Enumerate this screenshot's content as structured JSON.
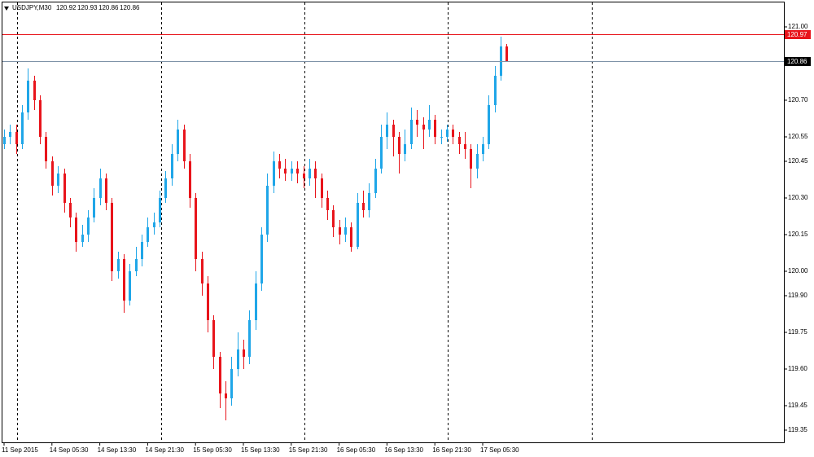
{
  "chart_data": {
    "type": "candlestick",
    "symbol": "USDJPY,M30",
    "categories": [
      "11 Sep 2015",
      null,
      null,
      null,
      null,
      null,
      null,
      null,
      "14 Sep 05:30",
      null,
      null,
      null,
      null,
      null,
      null,
      null,
      "14 Sep 13:30",
      null,
      null,
      null,
      null,
      null,
      null,
      null,
      "14 Sep 21:30",
      null,
      null,
      null,
      null,
      null,
      null,
      null,
      "15 Sep 05:30",
      null,
      null,
      null,
      null,
      null,
      null,
      null,
      "15 Sep 13:30",
      null,
      null,
      null,
      null,
      null,
      null,
      null,
      "15 Sep 21:30",
      null,
      null,
      null,
      null,
      null,
      null,
      null,
      "16 Sep 05:30",
      null,
      null,
      null,
      null,
      null,
      null,
      null,
      "16 Sep 13:30",
      null,
      null,
      null,
      null,
      null,
      null,
      null,
      "16 Sep 21:30",
      null,
      null,
      null,
      null,
      null,
      null,
      null,
      "17 Sep 05:30",
      null,
      null,
      null,
      null
    ],
    "open": [
      120.52,
      120.55,
      120.57,
      120.52,
      120.65,
      120.78,
      120.7,
      120.55,
      120.45,
      120.35,
      120.4,
      120.28,
      120.22,
      120.12,
      120.15,
      120.22,
      120.3,
      120.38,
      120.28,
      120.0,
      120.05,
      119.88,
      120.0,
      120.05,
      120.12,
      120.18,
      120.2,
      120.3,
      120.38,
      120.48,
      120.58,
      120.45,
      120.3,
      120.05,
      119.95,
      119.8,
      119.65,
      119.5,
      119.48,
      119.6,
      119.68,
      119.65,
      119.8,
      119.95,
      120.15,
      120.35,
      120.45,
      120.42,
      120.4,
      120.42,
      120.4,
      120.38,
      120.42,
      120.38,
      120.3,
      120.25,
      120.18,
      120.15,
      120.18,
      120.1,
      120.28,
      120.25,
      120.32,
      120.42,
      120.55,
      120.6,
      120.55,
      120.48,
      120.52,
      120.62,
      120.6,
      120.58,
      120.62,
      120.55,
      120.55,
      120.58,
      120.55,
      120.52,
      120.5,
      120.42,
      120.48,
      120.52,
      120.68,
      120.8,
      120.92
    ],
    "high": [
      120.58,
      120.6,
      120.6,
      120.68,
      120.83,
      120.8,
      120.72,
      120.57,
      120.47,
      120.43,
      120.42,
      120.3,
      120.24,
      120.19,
      120.25,
      120.34,
      120.42,
      120.4,
      120.3,
      120.08,
      120.07,
      120.03,
      120.1,
      120.15,
      120.22,
      120.24,
      120.33,
      120.41,
      120.52,
      120.62,
      120.6,
      120.48,
      120.32,
      120.08,
      119.98,
      119.82,
      119.67,
      119.55,
      119.65,
      119.75,
      119.72,
      119.84,
      120.0,
      120.18,
      120.4,
      120.49,
      120.48,
      120.46,
      120.45,
      120.45,
      120.43,
      120.46,
      120.45,
      120.4,
      120.33,
      120.27,
      120.21,
      120.22,
      120.2,
      120.32,
      120.33,
      120.36,
      120.46,
      120.6,
      120.65,
      120.62,
      120.57,
      120.58,
      120.67,
      120.66,
      120.63,
      120.68,
      120.64,
      120.58,
      120.6,
      120.6,
      120.57,
      120.57,
      120.52,
      120.52,
      120.55,
      120.72,
      120.84,
      120.96,
      120.93
    ],
    "low": [
      120.5,
      120.52,
      120.48,
      120.5,
      120.62,
      120.66,
      120.52,
      120.42,
      120.31,
      120.32,
      120.24,
      120.18,
      120.08,
      120.1,
      120.12,
      120.2,
      120.27,
      120.25,
      119.96,
      119.97,
      119.83,
      119.86,
      119.98,
      120.02,
      120.1,
      120.15,
      120.18,
      120.28,
      120.35,
      120.45,
      120.42,
      120.26,
      120.0,
      119.9,
      119.75,
      119.6,
      119.44,
      119.39,
      119.45,
      119.57,
      119.6,
      119.62,
      119.76,
      119.92,
      120.12,
      120.32,
      120.38,
      120.37,
      120.37,
      120.36,
      120.34,
      120.35,
      120.3,
      120.26,
      120.21,
      120.14,
      120.11,
      120.12,
      120.08,
      120.09,
      120.22,
      120.22,
      120.3,
      120.4,
      120.5,
      120.47,
      120.4,
      120.45,
      120.5,
      120.55,
      120.5,
      120.55,
      120.52,
      120.52,
      120.53,
      120.52,
      120.48,
      120.46,
      120.34,
      120.38,
      120.45,
      120.5,
      120.65,
      120.78,
      120.86
    ],
    "close": [
      120.55,
      120.57,
      120.52,
      120.65,
      120.78,
      120.7,
      120.55,
      120.45,
      120.35,
      120.4,
      120.28,
      120.22,
      120.12,
      120.15,
      120.22,
      120.3,
      120.38,
      120.28,
      120.0,
      120.05,
      119.88,
      120.0,
      120.05,
      120.12,
      120.18,
      120.2,
      120.3,
      120.38,
      120.48,
      120.58,
      120.45,
      120.3,
      120.05,
      119.95,
      119.8,
      119.65,
      119.5,
      119.48,
      119.6,
      119.68,
      119.65,
      119.8,
      119.95,
      120.15,
      120.35,
      120.45,
      120.42,
      120.4,
      120.42,
      120.4,
      120.38,
      120.42,
      120.38,
      120.3,
      120.25,
      120.18,
      120.15,
      120.18,
      120.1,
      120.28,
      120.25,
      120.32,
      120.42,
      120.55,
      120.6,
      120.55,
      120.48,
      120.52,
      120.62,
      120.6,
      120.58,
      120.62,
      120.55,
      120.55,
      120.58,
      120.55,
      120.52,
      120.5,
      120.42,
      120.48,
      120.52,
      120.68,
      120.8,
      120.92,
      120.86
    ],
    "up_color": "#1fa6e8",
    "down_color": "#e8141b",
    "ask": 120.97,
    "ask_color": "#e8141b",
    "bid": 120.86,
    "bid_color": "#7f93a8",
    "ylim": [
      119.3,
      121.1
    ],
    "yticks": [
      {
        "value": 121.0,
        "label": "121.00"
      },
      {
        "value": 120.7,
        "label": "120.70"
      },
      120.55,
      120.45,
      {
        "value": 120.3,
        "label": "120.30"
      },
      120.15,
      {
        "value": 120.0,
        "label": "120.00"
      },
      {
        "value": 119.9,
        "label": "119.90"
      },
      119.75,
      {
        "value": 119.6,
        "label": "119.60"
      },
      119.45,
      119.35
    ],
    "period_separators": true
  }
}
